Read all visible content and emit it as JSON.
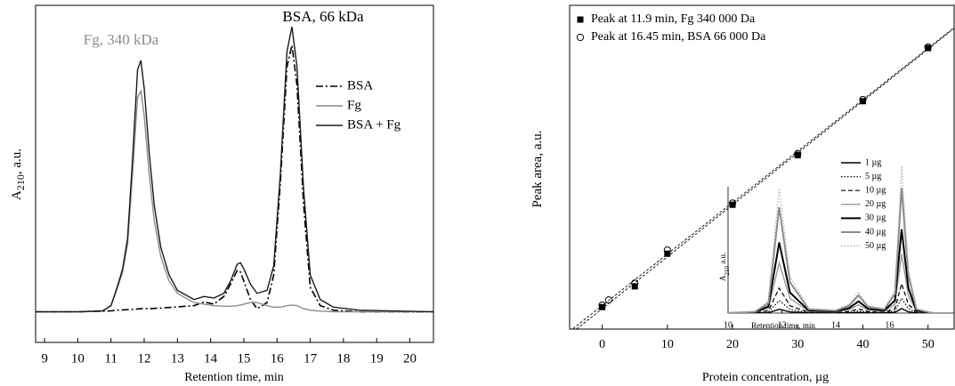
{
  "chart_data": [
    {
      "type": "line",
      "xlabel": "Retention time, min",
      "ylabel": {
        "main": "A",
        "sub": "210",
        "rest": ", a.u."
      },
      "annotations": [
        {
          "text": "Fg, 340 kDa",
          "color": "#8c8c8c"
        },
        {
          "text": "BSA, 66 kDa",
          "color": "#000000"
        }
      ],
      "xlim": [
        8.73,
        20.71
      ],
      "ylim": [
        -10,
        100
      ],
      "xticks": [
        9,
        10,
        11,
        12,
        13,
        14,
        15,
        16,
        17,
        18,
        19,
        20
      ],
      "x": [
        8.75,
        10,
        10.75,
        11,
        11.2,
        11.35,
        11.5,
        11.65,
        11.8,
        11.9,
        12.0,
        12.15,
        12.3,
        12.5,
        12.75,
        13,
        13.5,
        13.8,
        14.1,
        14.4,
        14.6,
        14.8,
        14.9,
        15.0,
        15.2,
        15.4,
        15.7,
        15.9,
        16.1,
        16.3,
        16.45,
        16.6,
        16.8,
        17.0,
        17.3,
        17.7,
        18.5,
        20.7
      ],
      "series": [
        {
          "name": "BSA",
          "color": "#000000",
          "style": "dashdot",
          "values": [
            0,
            0,
            0.2,
            0.3,
            0.5,
            0.6,
            0.7,
            0.8,
            0.9,
            1,
            1,
            1,
            1.1,
            1.2,
            1.4,
            1.6,
            2,
            3.2,
            2.5,
            5,
            9,
            13.5,
            13,
            10,
            4,
            1,
            3,
            12,
            42,
            80,
            87,
            74,
            35,
            8,
            2,
            0.5,
            0,
            0
          ]
        },
        {
          "name": "Fg",
          "color": "#8c8c8c",
          "style": "solid",
          "values": [
            0,
            0,
            0.3,
            2,
            8,
            13,
            22,
            45,
            70,
            72,
            64,
            45,
            30,
            18,
            10,
            6,
            3,
            2.5,
            2,
            1.8,
            1.8,
            2,
            2.2,
            2.5,
            3,
            3,
            2,
            1.5,
            1.5,
            2,
            2.2,
            2,
            1,
            0.5,
            0.2,
            0,
            0,
            0
          ]
        },
        {
          "name": "BSA + Fg",
          "color": "#1a1a1a",
          "style": "solid",
          "values": [
            0,
            0,
            0.3,
            2,
            8.5,
            14,
            24,
            50,
            79,
            82,
            73,
            52,
            35,
            21,
            12,
            7,
            4,
            5,
            4.5,
            6,
            10,
            15.5,
            16,
            14,
            9,
            6,
            7,
            15,
            45,
            85,
            93,
            80,
            40,
            12,
            4,
            1.5,
            0.5,
            0
          ]
        }
      ]
    },
    {
      "type": "scatter",
      "xlabel": "Protein concentration, µg",
      "ylabel": {
        "main": "Peak area, a.u."
      },
      "xlim": [
        -5,
        54
      ],
      "ylim": [
        0,
        100
      ],
      "xticks": [
        0,
        10,
        20,
        30,
        40,
        50
      ],
      "fit": "linear",
      "series": [
        {
          "name": "Peak at 11.9 min, Fg 340 000 Da",
          "color": "#000000",
          "marker": "square",
          "x": [
            0,
            5,
            10,
            20,
            30,
            40,
            50
          ],
          "values": [
            6.8,
            13.2,
            23.3,
            38.4,
            53.7,
            70.4,
            86.8
          ]
        },
        {
          "name": " Peak at 16.45 min, BSA 66 000 Da",
          "color": "#000000",
          "marker": "circle",
          "x": [
            0,
            1,
            5,
            10,
            20,
            30,
            40,
            50
          ],
          "values": [
            7.4,
            9.0,
            14.2,
            24.4,
            38.9,
            54.2,
            70.9,
            87.1
          ]
        }
      ]
    },
    {
      "type": "line",
      "xlabel": "Retention time, min",
      "ylabel": {
        "main": "A",
        "sub": "210",
        "rest": " a.u."
      },
      "xlim": [
        10,
        18.4
      ],
      "ylim": [
        0,
        110
      ],
      "xticks": [
        10,
        12,
        14,
        16
      ],
      "x": [
        10,
        11,
        11.5,
        11.9,
        12.3,
        13,
        14,
        14.5,
        14.85,
        15.2,
        15.8,
        16.2,
        16.45,
        16.7,
        17,
        17.6
      ],
      "series": [
        {
          "name": "1 µg",
          "color": "#000000",
          "style": "solid",
          "values": [
            0,
            0,
            0.2,
            2.6,
            0.8,
            0.1,
            0.1,
            0.2,
            0.4,
            0.2,
            0.1,
            0.5,
            3,
            0.9,
            0.1,
            0
          ]
        },
        {
          "name": "5 µg",
          "color": "#000000",
          "style": "dotted",
          "values": [
            0,
            0.1,
            0.8,
            8.5,
            2.5,
            0.3,
            0.2,
            0.6,
            1.4,
            0.5,
            0.3,
            1.5,
            10,
            3,
            0.3,
            0
          ]
        },
        {
          "name": "10 µg",
          "color": "#000000",
          "style": "dashed",
          "values": [
            0,
            0.2,
            1.6,
            17,
            5,
            0.6,
            0.4,
            1.2,
            2.8,
            1,
            0.6,
            3,
            20,
            6,
            0.6,
            0
          ]
        },
        {
          "name": "20 µg",
          "color": "#999999",
          "style": "solid",
          "values": [
            0,
            0.4,
            3.2,
            34,
            10,
            1.2,
            0.8,
            2.4,
            5.6,
            2,
            1.2,
            6,
            40,
            12,
            1.2,
            0
          ]
        },
        {
          "name": "30 µg",
          "color": "#000000",
          "style": "thick",
          "values": [
            0,
            0.6,
            4.6,
            48,
            14,
            1.7,
            1.1,
            3.4,
            8,
            2.9,
            1.7,
            8.6,
            57,
            17,
            1.7,
            0
          ]
        },
        {
          "name": "40 µg",
          "color": "#8c8c8c",
          "style": "thick",
          "values": [
            0,
            0.9,
            6.8,
            72,
            21,
            2.6,
            1.7,
            5.1,
            12,
            4.3,
            2.6,
            13,
            85,
            26,
            2.6,
            0
          ]
        },
        {
          "name": "50 µg",
          "color": "#b0b0b0",
          "style": "dotted",
          "values": [
            0,
            1,
            8,
            85,
            25,
            3,
            2,
            6,
            14,
            5,
            3,
            15,
            100,
            30,
            3,
            0
          ]
        }
      ]
    }
  ]
}
